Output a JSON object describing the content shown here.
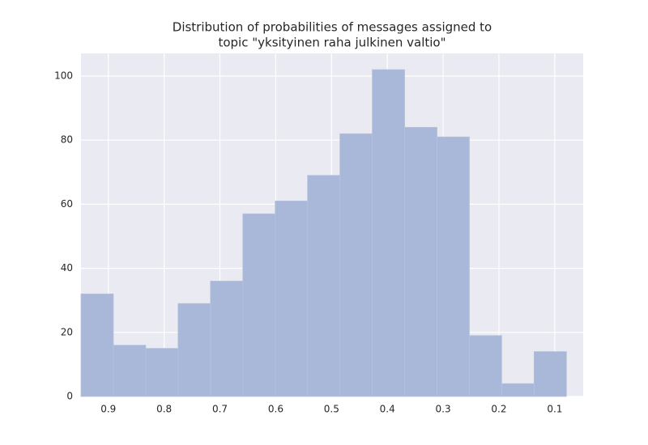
{
  "chart_data": {
    "type": "histogram",
    "title": [
      "Distribution of probabilities of messages assigned to",
      "topic \"yksityinen raha julkinen valtio\""
    ],
    "bins": [
      0.079,
      0.137,
      0.195,
      0.253,
      0.311,
      0.369,
      0.427,
      0.485,
      0.543,
      0.601,
      0.659,
      0.717,
      0.775,
      0.833,
      0.891,
      0.949
    ],
    "values": [
      14,
      4,
      19,
      81,
      84,
      102,
      82,
      69,
      61,
      57,
      36,
      29,
      15,
      16,
      32
    ],
    "color": "#a9b8d8",
    "xlim": [
      0.949,
      0.049
    ],
    "xticks": [
      0.9,
      0.8,
      0.7,
      0.6,
      0.5,
      0.4,
      0.3,
      0.2,
      0.1
    ],
    "ylim": [
      0,
      107.07
    ],
    "yticks": [
      0,
      20,
      40,
      60,
      80,
      100
    ],
    "grid": true
  }
}
